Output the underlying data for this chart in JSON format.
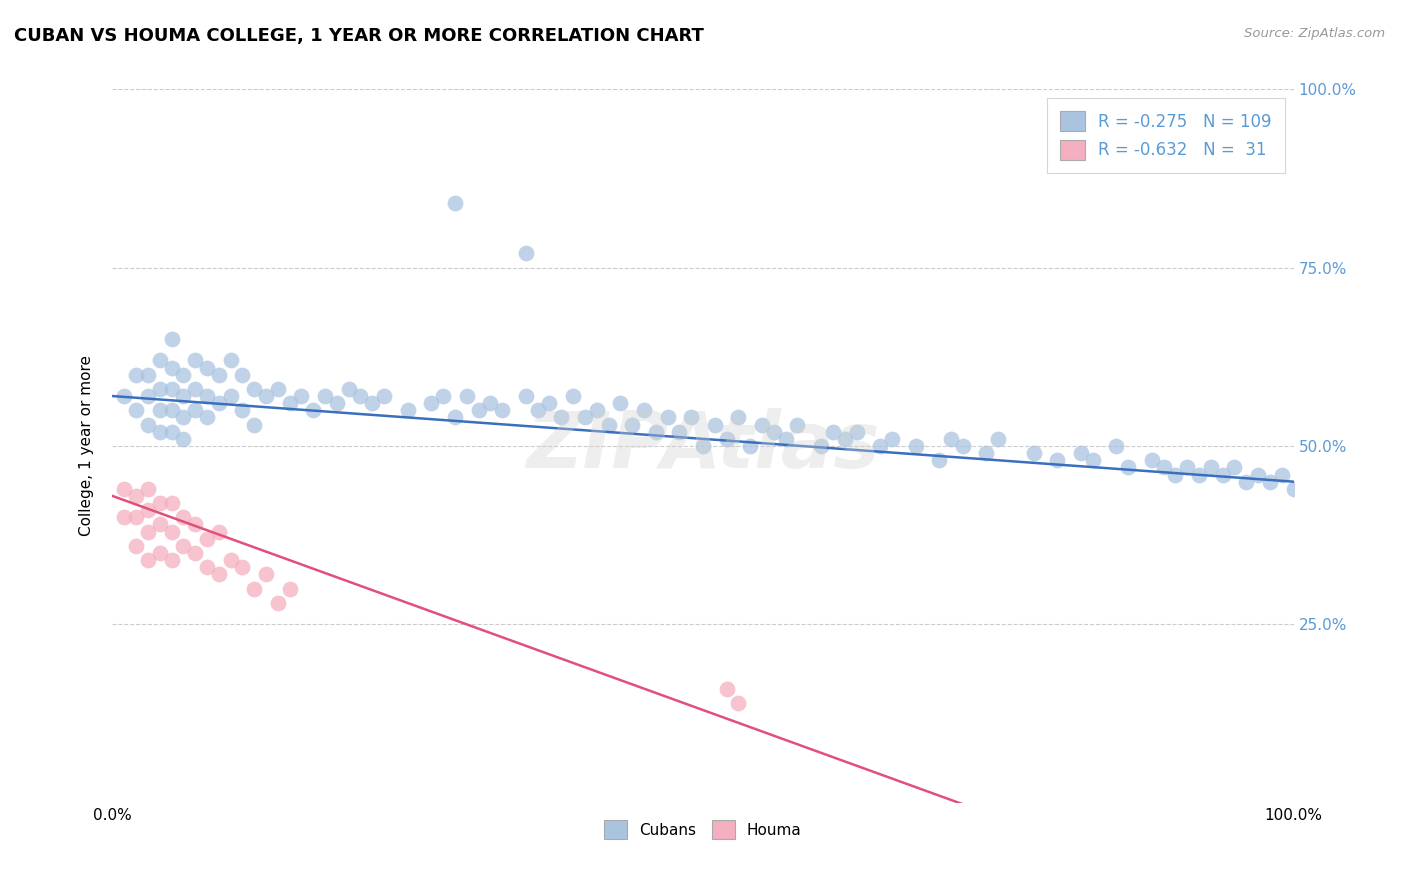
{
  "title": "CUBAN VS HOUMA COLLEGE, 1 YEAR OR MORE CORRELATION CHART",
  "source": "Source: ZipAtlas.com",
  "ylabel": "College, 1 year or more",
  "xlim": [
    0.0,
    1.0
  ],
  "ylim": [
    0.0,
    1.0
  ],
  "xtick_positions": [
    0.0,
    1.0
  ],
  "xtick_labels": [
    "0.0%",
    "100.0%"
  ],
  "ytick_positions": [
    0.25,
    0.5,
    0.75,
    1.0
  ],
  "ytick_labels": [
    "25.0%",
    "50.0%",
    "75.0%",
    "100.0%"
  ],
  "bottom_legend": [
    "Cubans",
    "Houma"
  ],
  "blue_dot_color": "#aac4e0",
  "pink_dot_color": "#f4afc0",
  "blue_line_color": "#3a6fbd",
  "pink_line_color": "#e0507a",
  "tick_color": "#5b9bd5",
  "watermark": "ZIPAtlas",
  "background_color": "#ffffff",
  "grid_color": "#cccccc",
  "legend_label_1": "R = -0.275   N = 109",
  "legend_label_2": "R = -0.632   N =  31",
  "blue_regression": [
    0.57,
    -0.12
  ],
  "pink_regression": [
    0.43,
    -0.6
  ],
  "cubans_x": [
    0.01,
    0.02,
    0.02,
    0.03,
    0.03,
    0.03,
    0.04,
    0.04,
    0.04,
    0.04,
    0.05,
    0.05,
    0.05,
    0.05,
    0.05,
    0.06,
    0.06,
    0.06,
    0.06,
    0.07,
    0.07,
    0.07,
    0.08,
    0.08,
    0.08,
    0.09,
    0.09,
    0.1,
    0.1,
    0.11,
    0.11,
    0.12,
    0.12,
    0.13,
    0.14,
    0.15,
    0.16,
    0.17,
    0.18,
    0.19,
    0.2,
    0.21,
    0.22,
    0.23,
    0.25,
    0.27,
    0.28,
    0.29,
    0.3,
    0.31,
    0.32,
    0.33,
    0.35,
    0.36,
    0.37,
    0.38,
    0.39,
    0.4,
    0.41,
    0.42,
    0.43,
    0.44,
    0.45,
    0.46,
    0.47,
    0.48,
    0.49,
    0.5,
    0.51,
    0.52,
    0.53,
    0.54,
    0.55,
    0.56,
    0.57,
    0.58,
    0.6,
    0.61,
    0.62,
    0.63,
    0.65,
    0.66,
    0.68,
    0.7,
    0.71,
    0.72,
    0.74,
    0.75,
    0.78,
    0.8,
    0.82,
    0.83,
    0.85,
    0.86,
    0.88,
    0.89,
    0.9,
    0.91,
    0.92,
    0.93,
    0.94,
    0.95,
    0.96,
    0.97,
    0.98,
    0.99,
    1.0,
    0.29,
    0.35
  ],
  "cubans_y": [
    0.57,
    0.6,
    0.55,
    0.6,
    0.57,
    0.53,
    0.62,
    0.58,
    0.55,
    0.52,
    0.65,
    0.61,
    0.58,
    0.55,
    0.52,
    0.6,
    0.57,
    0.54,
    0.51,
    0.62,
    0.58,
    0.55,
    0.61,
    0.57,
    0.54,
    0.6,
    0.56,
    0.62,
    0.57,
    0.6,
    0.55,
    0.58,
    0.53,
    0.57,
    0.58,
    0.56,
    0.57,
    0.55,
    0.57,
    0.56,
    0.58,
    0.57,
    0.56,
    0.57,
    0.55,
    0.56,
    0.57,
    0.54,
    0.57,
    0.55,
    0.56,
    0.55,
    0.57,
    0.55,
    0.56,
    0.54,
    0.57,
    0.54,
    0.55,
    0.53,
    0.56,
    0.53,
    0.55,
    0.52,
    0.54,
    0.52,
    0.54,
    0.5,
    0.53,
    0.51,
    0.54,
    0.5,
    0.53,
    0.52,
    0.51,
    0.53,
    0.5,
    0.52,
    0.51,
    0.52,
    0.5,
    0.51,
    0.5,
    0.48,
    0.51,
    0.5,
    0.49,
    0.51,
    0.49,
    0.48,
    0.49,
    0.48,
    0.5,
    0.47,
    0.48,
    0.47,
    0.46,
    0.47,
    0.46,
    0.47,
    0.46,
    0.47,
    0.45,
    0.46,
    0.45,
    0.46,
    0.44,
    0.84,
    0.77
  ],
  "houma_x": [
    0.01,
    0.01,
    0.02,
    0.02,
    0.02,
    0.03,
    0.03,
    0.03,
    0.03,
    0.04,
    0.04,
    0.04,
    0.05,
    0.05,
    0.05,
    0.06,
    0.06,
    0.07,
    0.07,
    0.08,
    0.08,
    0.09,
    0.09,
    0.1,
    0.11,
    0.12,
    0.13,
    0.14,
    0.15,
    0.52,
    0.53
  ],
  "houma_y": [
    0.44,
    0.4,
    0.43,
    0.4,
    0.36,
    0.44,
    0.41,
    0.38,
    0.34,
    0.42,
    0.39,
    0.35,
    0.42,
    0.38,
    0.34,
    0.4,
    0.36,
    0.39,
    0.35,
    0.37,
    0.33,
    0.38,
    0.32,
    0.34,
    0.33,
    0.3,
    0.32,
    0.28,
    0.3,
    0.16,
    0.14
  ]
}
